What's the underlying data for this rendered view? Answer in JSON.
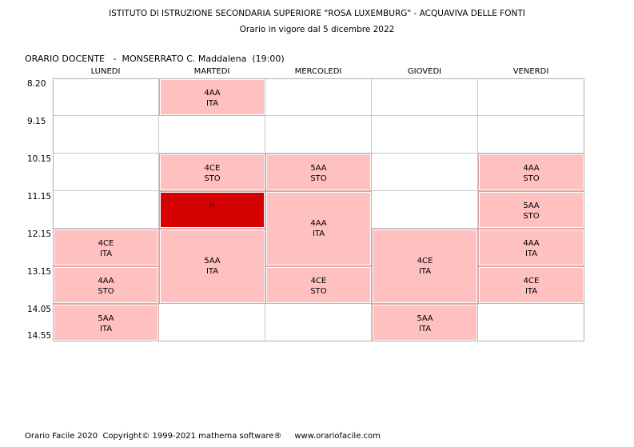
{
  "header": {
    "school": "ISTITUTO DI ISTRUZIONE SECONDARIA SUPERIORE \"ROSA LUXEMBURG\" - ACQUAVIVA DELLE FONTI",
    "validity": "Orario in vigore dal 5 dicembre 2022"
  },
  "teacher": {
    "label": "ORARIO DOCENTE   -  MONSERRATO C. Maddalena  (19:00)"
  },
  "days": [
    "LUNEDI",
    "MARTEDI",
    "MERCOLEDI",
    "GIOVEDI",
    "VENERDI"
  ],
  "times": [
    "8.20",
    "9.15",
    "10.15",
    "11.15",
    "12.15",
    "13.15",
    "14.05",
    "14.55"
  ],
  "lessons": [
    {
      "day": 1,
      "start": 0,
      "span": 1,
      "class": "4AA",
      "subject": "ITA"
    },
    {
      "day": 1,
      "start": 2,
      "span": 1,
      "class": "4CE",
      "subject": "STO"
    },
    {
      "day": 1,
      "start": 3,
      "span": 1,
      "class": "-- R --",
      "subject": "",
      "reserved": true
    },
    {
      "day": 1,
      "start": 4,
      "span": 2,
      "class": "5AA",
      "subject": "ITA"
    },
    {
      "day": 0,
      "start": 4,
      "span": 1,
      "class": "4CE",
      "subject": "ITA"
    },
    {
      "day": 0,
      "start": 5,
      "span": 1,
      "class": "4AA",
      "subject": "STO"
    },
    {
      "day": 0,
      "start": 6,
      "span": 1,
      "class": "5AA",
      "subject": "ITA"
    },
    {
      "day": 2,
      "start": 2,
      "span": 1,
      "class": "5AA",
      "subject": "STO"
    },
    {
      "day": 2,
      "start": 3,
      "span": 2,
      "class": "4AA",
      "subject": "ITA"
    },
    {
      "day": 2,
      "start": 5,
      "span": 1,
      "class": "4CE",
      "subject": "STO"
    },
    {
      "day": 3,
      "start": 4,
      "span": 2,
      "class": "4CE",
      "subject": "ITA"
    },
    {
      "day": 3,
      "start": 6,
      "span": 1,
      "class": "5AA",
      "subject": "ITA"
    },
    {
      "day": 4,
      "start": 2,
      "span": 1,
      "class": "4AA",
      "subject": "STO"
    },
    {
      "day": 4,
      "start": 3,
      "span": 1,
      "class": "5AA",
      "subject": "STO"
    },
    {
      "day": 4,
      "start": 4,
      "span": 1,
      "class": "4AA",
      "subject": "ITA"
    },
    {
      "day": 4,
      "start": 5,
      "span": 1,
      "class": "4CE",
      "subject": "ITA"
    }
  ],
  "footer": {
    "text": "Orario Facile 2020  Copyright© 1999-2021 mathema software®     www.orariofacile.com"
  }
}
